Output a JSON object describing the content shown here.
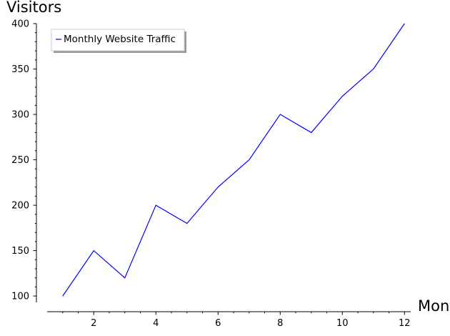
{
  "chart_data": {
    "type": "line",
    "title": "",
    "xlabel": "Month",
    "ylabel": "Visitors",
    "x": [
      1,
      2,
      3,
      4,
      5,
      6,
      7,
      8,
      9,
      10,
      11,
      12
    ],
    "series": [
      {
        "name": "Monthly Website Traffic",
        "color": "#0000ff",
        "values": [
          100,
          150,
          120,
          200,
          180,
          220,
          250,
          300,
          280,
          320,
          350,
          400
        ]
      }
    ],
    "xlim": [
      0.5,
      12.2
    ],
    "ylim": [
      93,
      400
    ],
    "x_ticks": [
      2,
      4,
      6,
      8,
      10,
      12
    ],
    "y_ticks": [
      100,
      150,
      200,
      250,
      300,
      350,
      400
    ],
    "grid": false,
    "legend_position": "top-left"
  }
}
